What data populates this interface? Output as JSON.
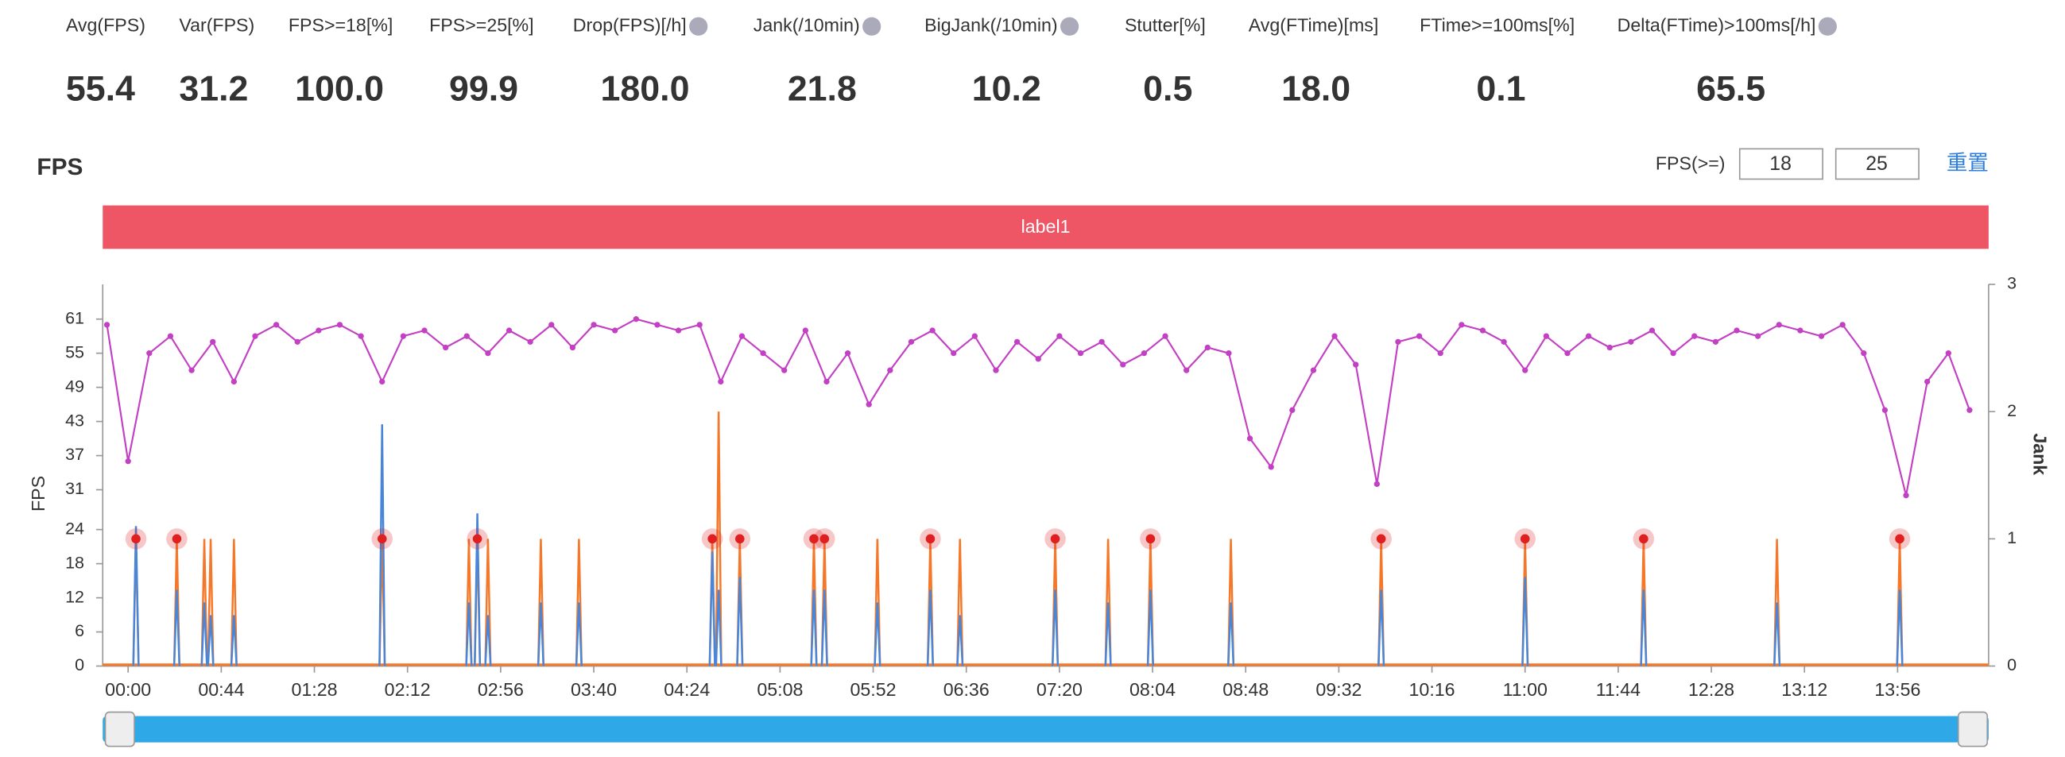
{
  "stats": [
    {
      "label": "Avg(FPS)",
      "value": "55.4",
      "help": false
    },
    {
      "label": "Var(FPS)",
      "value": "31.2",
      "help": false
    },
    {
      "label": "FPS>=18[%]",
      "value": "100.0",
      "help": false
    },
    {
      "label": "FPS>=25[%]",
      "value": "99.9",
      "help": false
    },
    {
      "label": "Drop(FPS)[/h]",
      "value": "180.0",
      "help": true
    },
    {
      "label": "Jank(/10min)",
      "value": "21.8",
      "help": true
    },
    {
      "label": "BigJank(/10min)",
      "value": "10.2",
      "help": true
    },
    {
      "label": "Stutter[%]",
      "value": "0.5",
      "help": false
    },
    {
      "label": "Avg(FTime)[ms]",
      "value": "18.0",
      "help": false
    },
    {
      "label": "FTime>=100ms[%]",
      "value": "0.1",
      "help": false
    },
    {
      "label": "Delta(FTime)>100ms[/h]",
      "value": "65.5",
      "help": true
    }
  ],
  "controls": {
    "threshold_label": "FPS(>=)",
    "thresholds": [
      "18",
      "25"
    ],
    "reset": "重置"
  },
  "chart_data": {
    "type": "line",
    "title": "FPS",
    "label_bar": "label1",
    "label_bar_color": "#ee5565",
    "ylabel": "FPS",
    "y2label": "Jank",
    "xlim": [
      -12,
      879
    ],
    "xticks": [
      {
        "value": 0,
        "label": "00:00"
      },
      {
        "value": 44,
        "label": "00:44"
      },
      {
        "value": 88,
        "label": "01:28"
      },
      {
        "value": 132,
        "label": "02:12"
      },
      {
        "value": 176,
        "label": "02:56"
      },
      {
        "value": 220,
        "label": "03:40"
      },
      {
        "value": 264,
        "label": "04:24"
      },
      {
        "value": 308,
        "label": "05:08"
      },
      {
        "value": 352,
        "label": "05:52"
      },
      {
        "value": 396,
        "label": "06:36"
      },
      {
        "value": 440,
        "label": "07:20"
      },
      {
        "value": 484,
        "label": "08:04"
      },
      {
        "value": 528,
        "label": "08:48"
      },
      {
        "value": 572,
        "label": "09:32"
      },
      {
        "value": 616,
        "label": "10:16"
      },
      {
        "value": 660,
        "label": "11:00"
      },
      {
        "value": 704,
        "label": "11:44"
      },
      {
        "value": 748,
        "label": "12:28"
      },
      {
        "value": 792,
        "label": "13:12"
      },
      {
        "value": 836,
        "label": "13:56"
      }
    ],
    "ylim": [
      0,
      67.1
    ],
    "yticks": [
      0,
      6,
      12,
      18,
      24,
      31,
      37,
      43,
      49,
      55,
      61
    ],
    "y2lim": [
      0,
      3
    ],
    "y2ticks": [
      0,
      1,
      2,
      3
    ],
    "x": [
      -10,
      0,
      10,
      20,
      30,
      40,
      50,
      60,
      70,
      80,
      90,
      100,
      110,
      120,
      130,
      140,
      150,
      160,
      170,
      180,
      190,
      200,
      210,
      220,
      230,
      240,
      250,
      260,
      270,
      280,
      290,
      300,
      310,
      320,
      330,
      340,
      350,
      360,
      370,
      380,
      390,
      400,
      410,
      420,
      430,
      440,
      450,
      460,
      470,
      480,
      490,
      500,
      510,
      520,
      530,
      540,
      550,
      560,
      570,
      580,
      590,
      600,
      610,
      620,
      630,
      640,
      650,
      660,
      670,
      680,
      690,
      700,
      710,
      720,
      730,
      740,
      750,
      760,
      770,
      780,
      790,
      800,
      810,
      820,
      830,
      840,
      850,
      860,
      870
    ],
    "series": [
      {
        "color": "#c33fc3",
        "values": [
          60,
          36,
          55,
          58,
          52,
          57,
          50,
          58,
          60,
          57,
          59,
          60,
          58,
          50,
          58,
          59,
          56,
          58,
          55,
          59,
          57,
          60,
          56,
          60,
          59,
          61,
          60,
          59,
          60,
          50,
          58,
          55,
          52,
          59,
          50,
          55,
          46,
          52,
          57,
          59,
          55,
          58,
          52,
          57,
          54,
          58,
          55,
          57,
          53,
          55,
          58,
          52,
          56,
          55,
          40,
          35,
          45,
          52,
          58,
          53,
          32,
          57,
          58,
          55,
          60,
          59,
          57,
          52,
          58,
          55,
          58,
          56,
          57,
          59,
          55,
          58,
          57,
          59,
          58,
          60,
          59,
          58,
          60,
          55,
          45,
          30,
          50,
          55,
          45
        ]
      }
    ],
    "jank": {
      "color": "#f5782a",
      "axis": "y2",
      "x": [
        3.7,
        23,
        36,
        39,
        50,
        120,
        161,
        165,
        170,
        195,
        213,
        276,
        279,
        289,
        324,
        329,
        354,
        379,
        393,
        438,
        463,
        483,
        521,
        592,
        660,
        716,
        779,
        837
      ],
      "values": [
        1,
        1,
        1,
        1,
        1,
        1,
        1,
        1,
        1,
        1,
        1,
        1,
        2,
        1,
        1,
        1,
        1,
        1,
        1,
        1,
        1,
        1,
        1,
        1,
        1,
        1,
        1,
        1
      ]
    },
    "bigjank": {
      "color": "#4a86d8",
      "axis": "y2",
      "x": [
        3.7,
        23,
        36,
        39,
        50,
        120,
        161,
        165,
        170,
        195,
        213,
        276,
        279,
        289,
        324,
        329,
        354,
        379,
        393,
        438,
        463,
        483,
        521,
        592,
        660,
        716,
        779,
        837
      ],
      "values": [
        1.1,
        0.6,
        0.5,
        0.4,
        0.4,
        1.9,
        0.5,
        1.2,
        0.4,
        0.5,
        0.5,
        0.9,
        0.6,
        0.7,
        0.6,
        0.6,
        0.5,
        0.6,
        0.4,
        0.6,
        0.5,
        0.6,
        0.5,
        0.6,
        0.7,
        0.6,
        0.5,
        0.6
      ]
    },
    "markers": {
      "color": "#e02020",
      "axis": "y2",
      "x": [
        3.7,
        23,
        120,
        165,
        276,
        289,
        324,
        329,
        379,
        438,
        483,
        592,
        660,
        716,
        837
      ],
      "values": [
        1,
        1,
        1,
        1,
        1,
        1,
        1,
        1,
        1,
        1,
        1,
        1,
        1,
        1,
        1
      ]
    }
  }
}
